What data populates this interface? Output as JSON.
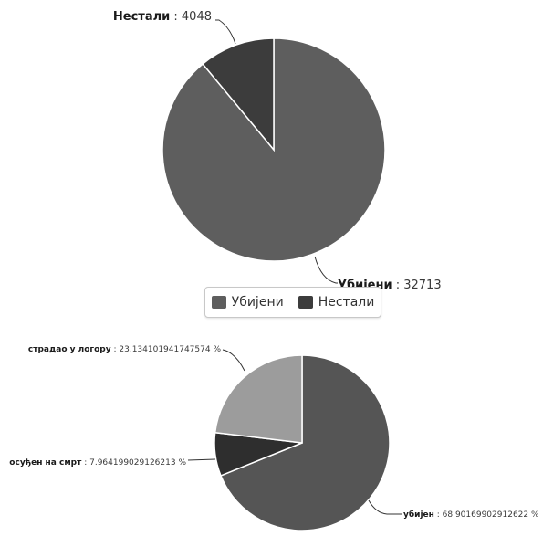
{
  "chart_data": [
    {
      "type": "pie",
      "slices": [
        {
          "name": "Убијени",
          "value": 32713,
          "color": "#5e5e5e"
        },
        {
          "name": "Нестали",
          "value": 4048,
          "color": "#3c3c3c"
        }
      ],
      "legend": {
        "placement": "bottom",
        "items": [
          "Убијени",
          "Нестали"
        ]
      }
    },
    {
      "type": "pie",
      "slices": [
        {
          "name": "убијен",
          "value": "68.90169902912622",
          "unit": "%",
          "color": "#555555"
        },
        {
          "name": "осуђен на смрт",
          "value": "7.964199029126213",
          "unit": "%",
          "color": "#2e2e2e"
        },
        {
          "name": "страдао у логору",
          "value": "23.134101941747574",
          "unit": "%",
          "color": "#9c9c9c"
        }
      ]
    }
  ]
}
